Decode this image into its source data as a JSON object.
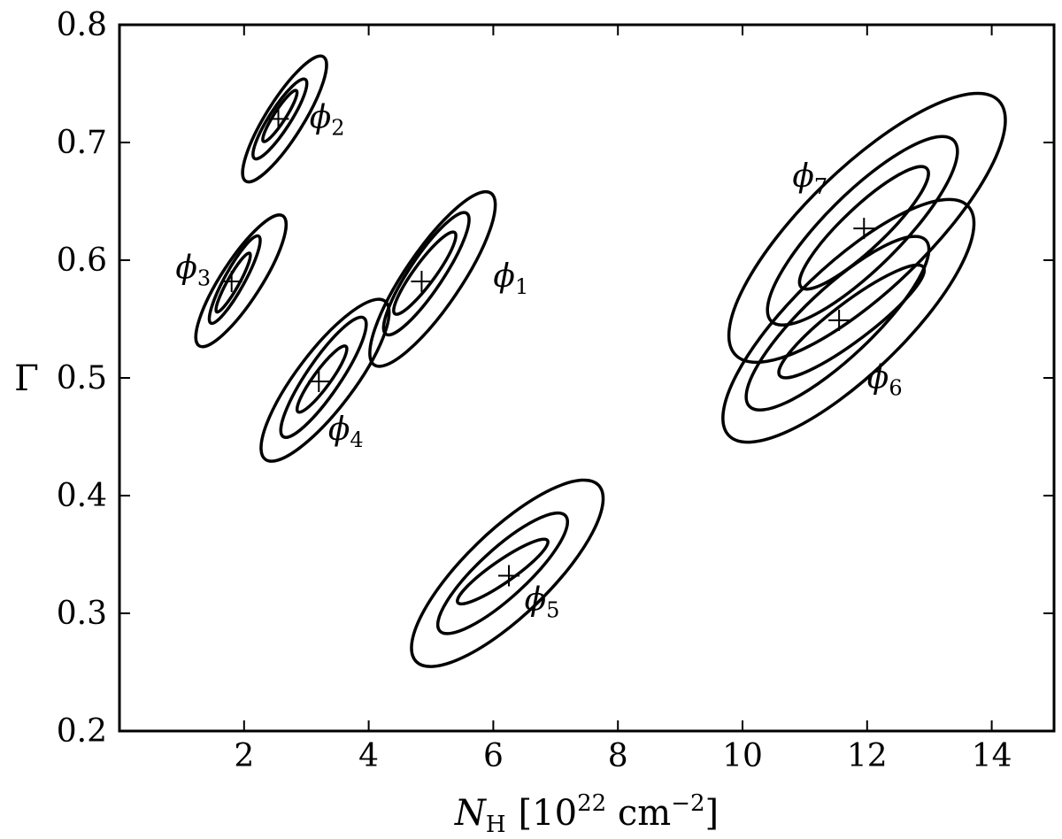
{
  "chart_data": {
    "type": "contour",
    "xlabel": {
      "symbol": "N",
      "subscript": "H",
      "units_pre": "[10",
      "units_exp": "22",
      "units_mid": " cm",
      "units_exp2": "−2",
      "units_post": "]"
    },
    "ylabel": "Γ",
    "xlim": [
      0,
      15
    ],
    "ylim": [
      0.2,
      0.8
    ],
    "xticks": [
      2,
      4,
      6,
      8,
      10,
      12,
      14
    ],
    "xtick_labels": [
      "2",
      "4",
      "6",
      "8",
      "10",
      "12",
      "14"
    ],
    "yticks": [
      0.2,
      0.3,
      0.4,
      0.5,
      0.6,
      0.7,
      0.8
    ],
    "ytick_labels": [
      "0.2",
      "0.3",
      "0.4",
      "0.5",
      "0.6",
      "0.7",
      "0.8"
    ],
    "grid": false,
    "line_color": "#000000",
    "contour_levels": 3,
    "series": [
      {
        "name": "1",
        "center": [
          4.85,
          0.582
        ],
        "label_pos": [
          6.0,
          0.585
        ],
        "contours": [
          {
            "x0": 4.4,
            "x1": 5.4,
            "y0": 0.553,
            "y1": 0.625
          },
          {
            "x0": 4.25,
            "x1": 5.6,
            "y0": 0.535,
            "y1": 0.642
          },
          {
            "x0": 4.05,
            "x1": 6.0,
            "y0": 0.508,
            "y1": 0.66
          }
        ]
      },
      {
        "name": "2",
        "center": [
          2.55,
          0.72
        ],
        "label_pos": [
          3.05,
          0.72
        ],
        "contours": [
          {
            "x0": 2.3,
            "x1": 2.85,
            "y0": 0.7,
            "y1": 0.745
          },
          {
            "x0": 2.15,
            "x1": 3.0,
            "y0": 0.685,
            "y1": 0.755
          },
          {
            "x0": 2.0,
            "x1": 3.3,
            "y0": 0.665,
            "y1": 0.775
          }
        ]
      },
      {
        "name": "3",
        "center": [
          1.8,
          0.582
        ],
        "label_pos": [
          0.9,
          0.592
        ],
        "contours": [
          {
            "x0": 1.55,
            "x1": 2.1,
            "y0": 0.555,
            "y1": 0.607
          },
          {
            "x0": 1.45,
            "x1": 2.25,
            "y0": 0.545,
            "y1": 0.622
          },
          {
            "x0": 1.25,
            "x1": 2.65,
            "y0": 0.525,
            "y1": 0.64
          }
        ]
      },
      {
        "name": "4",
        "center": [
          3.2,
          0.497
        ],
        "label_pos": [
          3.35,
          0.455
        ],
        "contours": [
          {
            "x0": 2.85,
            "x1": 3.65,
            "y0": 0.47,
            "y1": 0.528
          },
          {
            "x0": 2.6,
            "x1": 3.95,
            "y0": 0.448,
            "y1": 0.553
          },
          {
            "x0": 2.3,
            "x1": 4.3,
            "y0": 0.428,
            "y1": 0.568
          }
        ]
      },
      {
        "name": "5",
        "center": [
          6.25,
          0.332
        ],
        "label_pos": [
          6.5,
          0.31
        ],
        "contours": [
          {
            "x0": 5.4,
            "x1": 6.9,
            "y0": 0.308,
            "y1": 0.363
          },
          {
            "x0": 5.1,
            "x1": 7.2,
            "y0": 0.283,
            "y1": 0.385
          },
          {
            "x0": 4.7,
            "x1": 7.75,
            "y0": 0.256,
            "y1": 0.412
          }
        ]
      },
      {
        "name": "6",
        "center": [
          11.55,
          0.549
        ],
        "label_pos": [
          12.0,
          0.499
        ],
        "contours": [
          {
            "x0": 10.55,
            "x1": 12.95,
            "y0": 0.5,
            "y1": 0.596
          },
          {
            "x0": 10.05,
            "x1": 13.0,
            "y0": 0.473,
            "y1": 0.62
          },
          {
            "x0": 9.7,
            "x1": 13.7,
            "y0": 0.447,
            "y1": 0.65
          }
        ]
      },
      {
        "name": "7",
        "center": [
          11.95,
          0.627
        ],
        "label_pos": [
          10.8,
          0.67
        ],
        "contours": [
          {
            "x0": 10.9,
            "x1": 13.0,
            "y0": 0.575,
            "y1": 0.68
          },
          {
            "x0": 10.4,
            "x1": 13.45,
            "y0": 0.545,
            "y1": 0.705
          },
          {
            "x0": 9.8,
            "x1": 14.2,
            "y0": 0.515,
            "y1": 0.74
          }
        ]
      }
    ]
  }
}
